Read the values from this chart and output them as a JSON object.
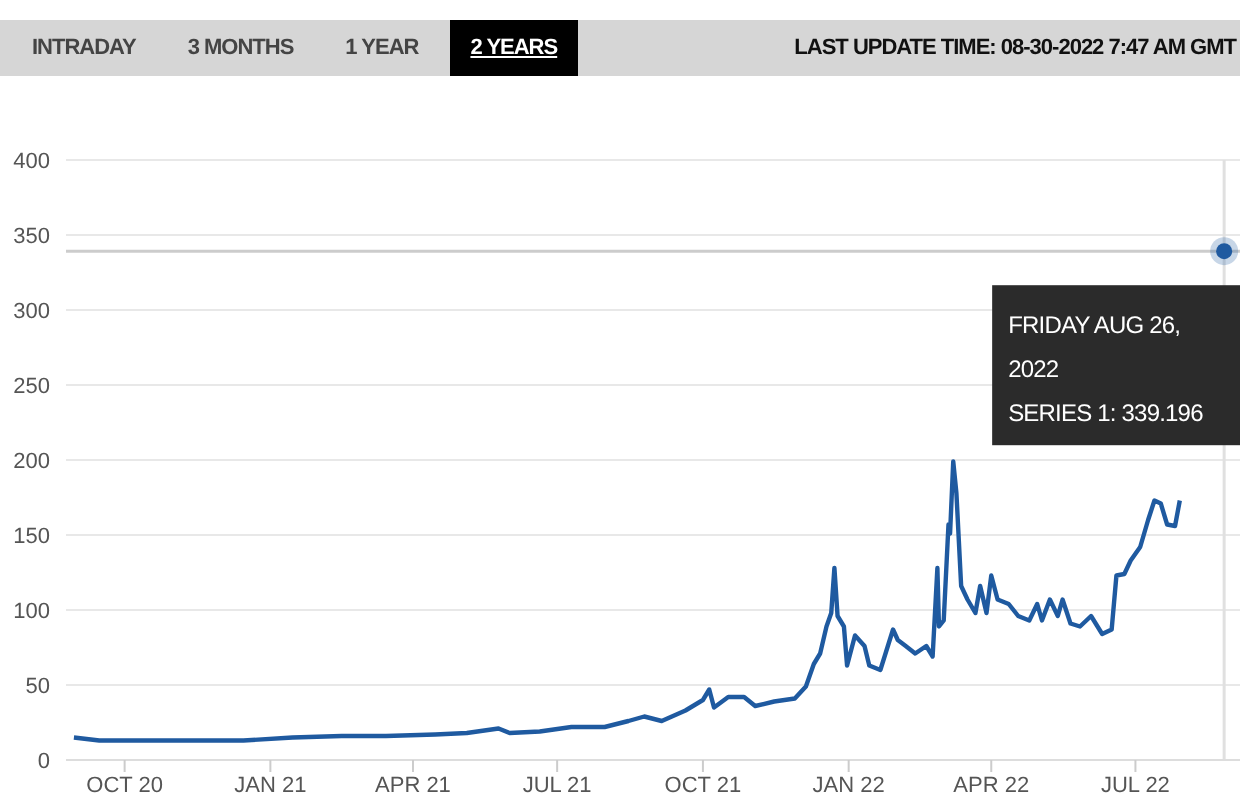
{
  "chart_data": {
    "type": "line",
    "subtitle": "LAST UPDATE TIME: 08-30-2022 7:47 AM GMT",
    "annotations": [
      "INTRADAY",
      "3 MONTHS",
      "1 YEAR",
      "2 YEARS",
      {
        "text": "FRIDAY AUG 26, 2022\nSERIES 1: 339.196",
        "x": "2022-08-26",
        "y": 339.196
      }
    ],
    "x": [
      "2020-08-30",
      "2020-09-15",
      "2020-10-15",
      "2020-11-15",
      "2020-12-15",
      "2021-01-15",
      "2021-02-15",
      "2021-03-15",
      "2021-04-15",
      "2021-05-05",
      "2021-05-25",
      "2021-06-01",
      "2021-06-20",
      "2021-07-10",
      "2021-07-31",
      "2021-08-15",
      "2021-08-25",
      "2021-09-05",
      "2021-09-20",
      "2021-10-01",
      "2021-10-05",
      "2021-10-08",
      "2021-10-17",
      "2021-10-27",
      "2021-11-03",
      "2021-11-15",
      "2021-11-28",
      "2021-12-05",
      "2021-12-10",
      "2021-12-14",
      "2021-12-18",
      "2021-12-21",
      "2021-12-23",
      "2021-12-25",
      "2021-12-29",
      "2021-12-31",
      "2022-01-05",
      "2022-01-11",
      "2022-01-14",
      "2022-01-21",
      "2022-01-29",
      "2022-02-01",
      "2022-02-06",
      "2022-02-12",
      "2022-02-19",
      "2022-02-23",
      "2022-02-26",
      "2022-02-27",
      "2022-03-02",
      "2022-03-05",
      "2022-03-06",
      "2022-03-08",
      "2022-03-10",
      "2022-03-13",
      "2022-03-17",
      "2022-03-22",
      "2022-03-25",
      "2022-03-29",
      "2022-04-01",
      "2022-04-05",
      "2022-04-12",
      "2022-04-18",
      "2022-04-25",
      "2022-04-30",
      "2022-05-03",
      "2022-05-08",
      "2022-05-13",
      "2022-05-16",
      "2022-05-21",
      "2022-05-27",
      "2022-06-03",
      "2022-06-10",
      "2022-06-16",
      "2022-06-19",
      "2022-06-24",
      "2022-06-28",
      "2022-07-04",
      "2022-07-09",
      "2022-07-13",
      "2022-07-17",
      "2022-07-21",
      "2022-07-26",
      "2022-07-29",
      "2022-08-10",
      "2022-08-26"
    ],
    "series": [
      {
        "color": "#1f5aa0",
        "values": [
          15,
          13,
          13,
          13,
          13,
          15,
          16,
          16,
          17,
          18,
          21,
          18,
          19,
          22,
          22,
          26,
          29,
          26,
          33,
          40,
          47,
          35,
          42,
          42,
          36,
          39,
          41,
          49,
          64,
          71,
          89,
          98,
          128,
          96,
          89,
          63,
          83,
          76,
          63,
          60,
          87,
          80,
          76,
          71,
          76,
          69,
          128,
          89,
          93,
          157,
          151,
          199,
          178,
          116,
          107,
          98,
          116,
          98,
          123,
          107,
          104,
          96,
          93,
          104,
          93,
          107,
          96,
          107,
          91,
          89,
          96,
          84,
          87,
          123,
          124,
          133,
          142,
          160,
          173,
          171,
          157,
          156,
          173,
          null,
          339.196
        ]
      }
    ],
    "xlim": [
      "2020-08-25",
      "2022-09-05"
    ],
    "xticks": [
      {
        "value": "2020-10-01",
        "label": "OCT 20"
      },
      {
        "value": "2021-01-01",
        "label": "JAN 21"
      },
      {
        "value": "2021-04-01",
        "label": "APR 21"
      },
      {
        "value": "2021-07-01",
        "label": "JUL 21"
      },
      {
        "value": "2021-10-01",
        "label": "OCT 21"
      },
      {
        "value": "2022-01-01",
        "label": "JAN 22"
      },
      {
        "value": "2022-04-01",
        "label": "APR 22"
      },
      {
        "value": "2022-07-01",
        "label": "JUL 22"
      }
    ],
    "ylim": [
      0,
      400
    ],
    "yticks": [
      0,
      50,
      100,
      150,
      200,
      250,
      300,
      350,
      400
    ],
    "grid": "y",
    "marker": "none",
    "line_style": "solid",
    "ref_lines": [
      {
        "axis": "y",
        "value": 339.196,
        "color": "#cccccc"
      },
      {
        "axis": "x",
        "value": "2022-08-26",
        "color": "#e0e0e0"
      }
    ]
  }
}
